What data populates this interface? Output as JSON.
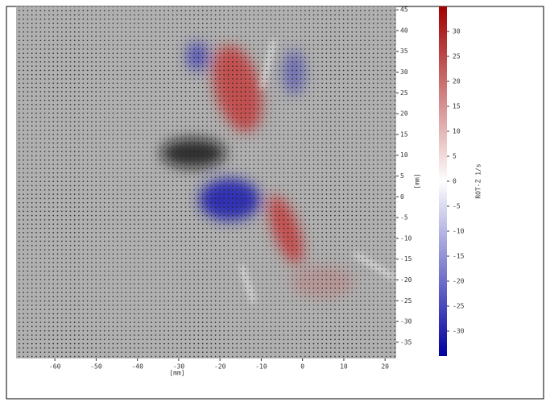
{
  "chart_data": {
    "type": "vector_field",
    "x_label": "[mm]",
    "y_label": "[mm]",
    "xlim": [
      -69.4,
      22.7
    ],
    "xticks": [
      -60,
      -50,
      -40,
      -30,
      -20,
      -10,
      0,
      10,
      20
    ],
    "ylim": [
      -38.9,
      45.8
    ],
    "yticks": [
      -35,
      -30,
      -25,
      -20,
      -15,
      -10,
      -5,
      0,
      5,
      10,
      15,
      20,
      25,
      30,
      35,
      40,
      45
    ],
    "colorbar": {
      "label": "ROT-Z 1/s",
      "clim": [
        -35,
        35
      ],
      "ticks": [
        -30,
        -25,
        -20,
        -15,
        -10,
        -5,
        0,
        5,
        10,
        15,
        20,
        25,
        30
      ],
      "colors": [
        "#0000a0",
        "#ffffff",
        "#a00000"
      ]
    }
  }
}
